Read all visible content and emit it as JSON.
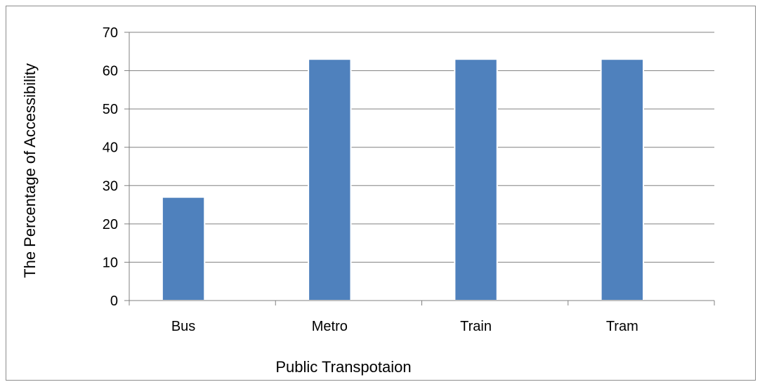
{
  "chart_data": {
    "type": "bar",
    "title": "",
    "xlabel": "Public Transpotaion",
    "ylabel": "The Percentage of Accessibility",
    "categories": [
      "Bus",
      "Metro",
      "Train",
      "Tram"
    ],
    "series": [
      {
        "values": [
          27,
          63,
          63,
          63
        ]
      }
    ],
    "ylim": [
      0,
      70
    ],
    "yticks": [
      0,
      10,
      20,
      30,
      40,
      50,
      60,
      70
    ],
    "grid": true,
    "legend": "none",
    "colors": {
      "bar": "#4f81bd",
      "bar_edge": "#ffffff",
      "grid": "#808080",
      "axis": "#808080"
    }
  }
}
